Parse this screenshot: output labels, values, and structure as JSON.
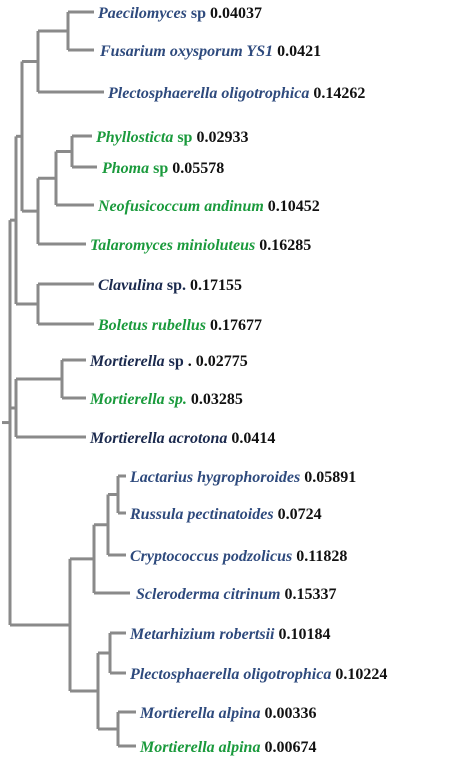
{
  "colors": {
    "branch": "#8a8a8a",
    "blue": "#2e4a7d",
    "dark": "#1b2a4e",
    "green": "#1a9a3c",
    "value": "#111111"
  },
  "leaves": [
    {
      "name": "Paecilomyces",
      "suffix": " sp",
      "suffix_italic": false,
      "value": "0.04037",
      "color": "blue"
    },
    {
      "name": "Fusarium oxysporum  YS1",
      "suffix": "",
      "suffix_italic": false,
      "value": "0.0421",
      "color": "blue"
    },
    {
      "name": "Plectosphaerella oligotrophica",
      "suffix": "",
      "suffix_italic": false,
      "value": "0.14262",
      "color": "blue"
    },
    {
      "name": "Phyllosticta",
      "suffix": " sp",
      "suffix_italic": false,
      "value": "0.02933",
      "color": "green"
    },
    {
      "name": "Phoma",
      "suffix": " sp",
      "suffix_italic": false,
      "value": "0.05578",
      "color": "green"
    },
    {
      "name": "Neofusicoccum andinum",
      "suffix": "",
      "suffix_italic": false,
      "value": "0.10452",
      "color": "green"
    },
    {
      "name": "Talaromyces minioluteus",
      "suffix": "",
      "suffix_italic": false,
      "value": "0.16285",
      "color": "green"
    },
    {
      "name": "Clavulina",
      "suffix": " sp.",
      "suffix_italic": false,
      "value": "0.17155",
      "color": "dark"
    },
    {
      "name": "Boletus rubellus",
      "suffix": "",
      "suffix_italic": false,
      "value": "0.17677",
      "color": "green"
    },
    {
      "name": "Mortierella",
      "suffix": " sp",
      "suffix_italic": false,
      "value": ". 0.02775",
      "color": "dark"
    },
    {
      "name": "Mortierella sp.",
      "suffix": "",
      "suffix_italic": false,
      "value": "0.03285",
      "color": "green"
    },
    {
      "name": "Mortierella acrotona",
      "suffix": "",
      "suffix_italic": false,
      "value": "0.0414",
      "color": "dark"
    },
    {
      "name": "Lactarius hygrophoroides",
      "suffix": "",
      "suffix_italic": false,
      "value": "0.05891",
      "color": "blue"
    },
    {
      "name": "Russula pectinatoides",
      "suffix": "",
      "suffix_italic": false,
      "value": "0.0724",
      "color": "blue"
    },
    {
      "name": "Cryptococcus podzolicus",
      "suffix": "",
      "suffix_italic": false,
      "value": "0.11828",
      "color": "blue"
    },
    {
      "name": "Scleroderma citrinum",
      "suffix": "",
      "suffix_italic": false,
      "value": "0.15337",
      "color": "blue"
    },
    {
      "name": "Metarhizium robertsii",
      "suffix": "",
      "suffix_italic": false,
      "value": "0.10184",
      "color": "blue"
    },
    {
      "name": "Plectosphaerella oligotrophica",
      "suffix": "",
      "suffix_italic": false,
      "value": "0.10224",
      "color": "blue"
    },
    {
      "name": "Mortierella alpina",
      "suffix": "",
      "suffix_italic": false,
      "value": "0.00336",
      "color": "blue"
    },
    {
      "name": "Mortierella alpina",
      "suffix": "",
      "suffix_italic": false,
      "value": "0.00674",
      "color": "green"
    }
  ]
}
